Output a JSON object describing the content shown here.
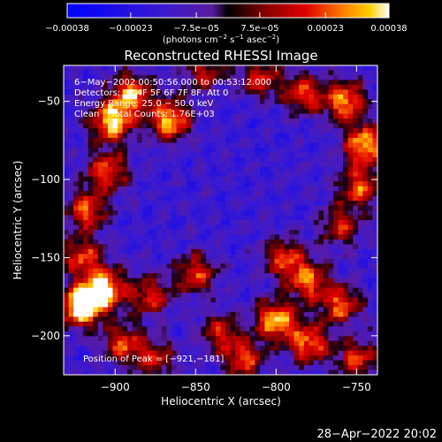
{
  "chart_data": {
    "type": "heatmap",
    "title": "Reconstructed RHESSI Image",
    "xlabel": "Heliocentric X (arcsec)",
    "ylabel": "Heliocentric Y (arcsec)",
    "xlim": [
      -932,
      -737
    ],
    "ylim": [
      -225,
      -27
    ],
    "x_ticks": [
      -900,
      -850,
      -800,
      -750
    ],
    "x_tick_labels": [
      "−900",
      "−850",
      "−800",
      "−750"
    ],
    "y_ticks": [
      -50,
      -100,
      -150,
      -200
    ],
    "y_tick_labels": [
      "−50",
      "−100",
      "−150",
      "−200"
    ],
    "colorbar": {
      "min": -0.00038,
      "max": 0.00038,
      "ticks": [
        -0.00038,
        -0.00023,
        -7.5e-05,
        7.5e-05,
        0.00023,
        0.00038
      ],
      "tick_labels": [
        "−0.00038",
        "−0.00023",
        "−7.5e−05",
        "7.5e−05",
        "0.00023",
        "0.00038"
      ],
      "label_main": "(photons cm",
      "label_exp1": "−2",
      "label_mid": " s",
      "label_exp2": "−1",
      "label_tail": " asec",
      "label_exp3": "−2",
      "label_end": ")"
    },
    "annotations": {
      "time_range": "6−May−2002 00:50:56.000 to 00:53:12.000",
      "detectors": "Detectors: 3F 4F 5F 6F 7F 8F, Att 0",
      "energy": "Energy Range: 25.0 − 50.0 keV",
      "clean": "Clean    Total Counts: 1.76E+03",
      "peak": "Position of Peak = [−921,−181]"
    },
    "footer_timestamp": "28−Apr−2022 20:02",
    "hotspots": [
      {
        "x": -921,
        "y": -181,
        "strength": 1.0
      },
      {
        "x": -902,
        "y": -63,
        "strength": 0.8
      },
      {
        "x": -890,
        "y": -45,
        "strength": 0.7
      },
      {
        "x": -866,
        "y": -62,
        "strength": 0.75
      },
      {
        "x": -918,
        "y": -120,
        "strength": 0.6
      },
      {
        "x": -905,
        "y": -95,
        "strength": 0.6
      },
      {
        "x": -920,
        "y": -150,
        "strength": 0.55
      },
      {
        "x": -906,
        "y": -170,
        "strength": 0.8
      },
      {
        "x": -895,
        "y": -205,
        "strength": 0.55
      },
      {
        "x": -878,
        "y": -175,
        "strength": 0.5
      },
      {
        "x": -875,
        "y": -215,
        "strength": 0.45
      },
      {
        "x": -850,
        "y": -160,
        "strength": 0.55
      },
      {
        "x": -835,
        "y": -198,
        "strength": 0.45
      },
      {
        "x": -845,
        "y": -32,
        "strength": 0.45
      },
      {
        "x": -810,
        "y": -35,
        "strength": 0.5
      },
      {
        "x": -783,
        "y": -45,
        "strength": 0.55
      },
      {
        "x": -757,
        "y": -50,
        "strength": 0.7
      },
      {
        "x": -745,
        "y": -78,
        "strength": 0.75
      },
      {
        "x": -748,
        "y": -105,
        "strength": 0.6
      },
      {
        "x": -760,
        "y": -130,
        "strength": 0.45
      },
      {
        "x": -795,
        "y": -150,
        "strength": 0.55
      },
      {
        "x": -780,
        "y": -165,
        "strength": 0.6
      },
      {
        "x": -800,
        "y": -190,
        "strength": 0.75
      },
      {
        "x": -780,
        "y": -205,
        "strength": 0.65
      },
      {
        "x": -760,
        "y": -180,
        "strength": 0.6
      },
      {
        "x": -750,
        "y": -215,
        "strength": 0.55
      },
      {
        "x": -820,
        "y": -215,
        "strength": 0.55
      }
    ]
  }
}
